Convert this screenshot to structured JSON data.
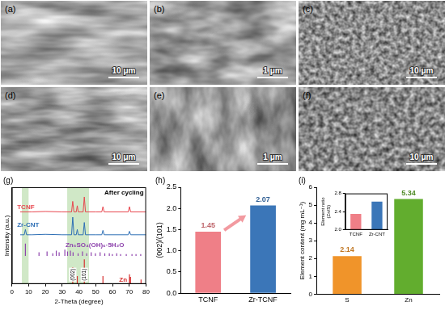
{
  "images": [
    {
      "label": "(a)",
      "scale_bar": "10 μm"
    },
    {
      "label": "(b)",
      "scale_bar": "1 μm"
    },
    {
      "label": "(c)",
      "scale_bar": "10 μm"
    },
    {
      "label": "(d)",
      "scale_bar": "10 μm"
    },
    {
      "label": "(e)",
      "scale_bar": "1 μm"
    },
    {
      "label": "(f)",
      "scale_bar": "10 μm"
    }
  ],
  "chart_data": [
    {
      "label": "(g)",
      "type": "line",
      "annotations": [
        "After cycling"
      ],
      "x_label": "2-Theta (degree)",
      "y_label": "Intensity (a.u.)",
      "xlim": [
        0,
        80
      ],
      "xticks": [
        0,
        10,
        20,
        30,
        40,
        50,
        60,
        70,
        80
      ],
      "ylim": [
        0,
        11
      ],
      "tick_labels": "x",
      "grid": false,
      "highlight_ranges": [
        [
          6,
          10
        ],
        [
          33,
          46
        ]
      ],
      "peak_labels": [
        {
          "x": 36.3,
          "label": "(002)"
        },
        {
          "x": 43.2,
          "label": "(101)"
        }
      ],
      "series": [
        {
          "name": "TCNF",
          "type": "line",
          "color": "#e8474f",
          "x": [
            5,
            12,
            20,
            30,
            35.6,
            36.3,
            37.0,
            38.4,
            39.0,
            39.6,
            42.5,
            43.2,
            43.9,
            50,
            53.6,
            54.3,
            55.0,
            69.4,
            70.1,
            70.8,
            80
          ],
          "values": [
            8.2,
            8.2,
            8.25,
            8.2,
            8.2,
            9.4,
            8.2,
            8.2,
            8.9,
            8.2,
            8.2,
            9.9,
            8.2,
            8.2,
            8.2,
            8.8,
            8.2,
            8.2,
            8.8,
            8.2,
            8.2
          ]
        },
        {
          "name": "Zr-CNT",
          "type": "line",
          "color": "#2e6fb5",
          "x": [
            5,
            7.4,
            8.1,
            8.8,
            12,
            20,
            30,
            35.6,
            36.3,
            37.0,
            38.4,
            39.0,
            39.6,
            42.5,
            43.2,
            43.9,
            50,
            53.6,
            54.3,
            55.0,
            69.4,
            70.1,
            70.8,
            80
          ],
          "values": [
            5.6,
            5.6,
            6.2,
            5.6,
            5.6,
            5.65,
            5.6,
            5.6,
            7.6,
            5.6,
            5.6,
            6.2,
            5.6,
            5.6,
            7.0,
            5.6,
            5.6,
            5.6,
            6.1,
            5.6,
            5.6,
            6.0,
            5.6,
            5.6
          ]
        },
        {
          "name": "Zn₅SO₄(OH)₆·5H₂O",
          "type": "stick",
          "color": "#8e44ad",
          "base": 3.2,
          "x": [
            8.1,
            16.2,
            21,
            24.4,
            26.5,
            28.2,
            31.6,
            33.2,
            34.9,
            36.5,
            39.5,
            42.1,
            44.6,
            47.3,
            49.8,
            52.6,
            55.4,
            58.1,
            59.9,
            62.5,
            64.8,
            68.2,
            71.6,
            74.0,
            76.8
          ],
          "values": [
            4.6,
            3.6,
            3.7,
            3.5,
            3.8,
            3.6,
            3.9,
            3.7,
            3.8,
            3.6,
            3.5,
            3.7,
            3.5,
            3.6,
            3.5,
            3.6,
            3.5,
            3.5,
            3.4,
            3.5,
            3.4,
            3.4,
            3.4,
            3.4,
            3.4
          ]
        },
        {
          "name": "Zn",
          "type": "stick",
          "color": "#d62f2f",
          "base": 0,
          "x": [
            36.3,
            39,
            43.2,
            54.3,
            70.1,
            70.7,
            77
          ],
          "values": [
            1.9,
            0.9,
            2.8,
            0.9,
            1.1,
            0.8,
            0.5
          ]
        }
      ]
    },
    {
      "label": "(h)",
      "type": "bar",
      "y_label": "(002)/(101)",
      "categories": [
        "TCNF",
        "Zr-TCNF"
      ],
      "values": [
        1.45,
        2.07
      ],
      "colors": [
        "#ef7f87",
        "#3b76b8"
      ],
      "ylim": [
        0,
        2.5
      ],
      "yticks": [
        {
          "value": 0,
          "label": "0.0"
        },
        0.5,
        {
          "value": 1,
          "label": "1.0"
        },
        1.5,
        {
          "value": 2,
          "label": "2.0"
        },
        2.5
      ],
      "data_labels": true,
      "grid": false
    },
    {
      "label": "(i)",
      "type": "bar",
      "y_label": "Element content (mg mL⁻¹)",
      "categories": [
        "S",
        "Zn"
      ],
      "values": [
        2.14,
        5.34
      ],
      "colors": [
        "#f0942a",
        "#62ad2e"
      ],
      "ylim": [
        0,
        6
      ],
      "yticks": [
        0,
        1,
        2,
        3,
        4,
        5,
        6
      ],
      "data_labels": true,
      "grid": false
    },
    {
      "type": "bar",
      "y_label": "Element ratio (Zn/S)",
      "categories": [
        "TCNF",
        "Zr-CNT"
      ],
      "values": [
        2.35,
        2.62
      ],
      "colors": [
        "#ef7f87",
        "#3b76b8"
      ],
      "ylim": [
        2,
        2.8
      ],
      "yticks": [
        {
          "value": 2,
          "label": "2.0"
        },
        2.4,
        2.8
      ],
      "grid": false
    }
  ]
}
